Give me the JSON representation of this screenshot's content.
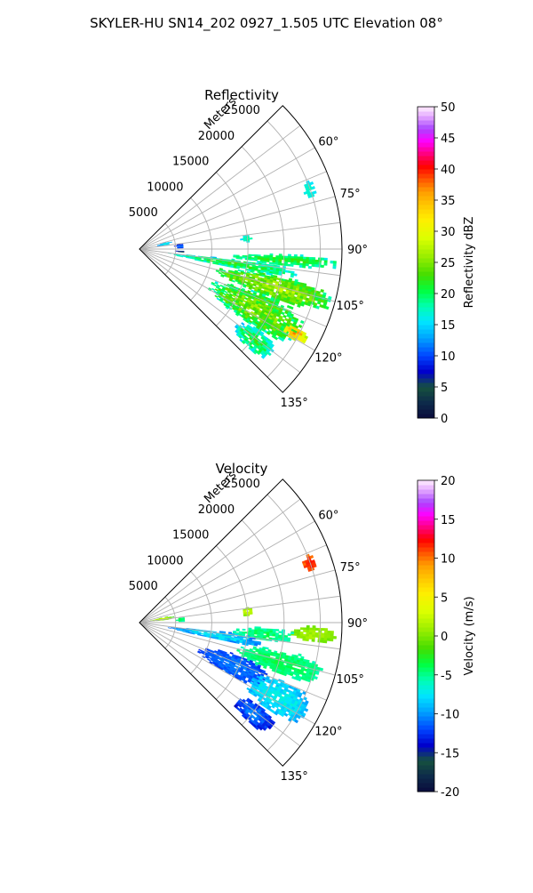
{
  "title": "SKYLER-HU  SN14_202  0927_1.505 UTC Elevation 08°",
  "chart_data": [
    {
      "type": "heatmap",
      "title": "Reflectivity",
      "range_label": "Meters",
      "range_ticks": [
        "5000",
        "10000",
        "15000",
        "20000",
        "25000"
      ],
      "range_max": 28000,
      "azimuth_ticks": [
        "60°",
        "75°",
        "90°",
        "105°",
        "120°",
        "135°"
      ],
      "azimuth_range": [
        45,
        135
      ],
      "colorbar": {
        "label": "Reflectivity dBZ",
        "ticks": [
          "0",
          "5",
          "10",
          "15",
          "20",
          "25",
          "30",
          "35",
          "40",
          "45",
          "50"
        ],
        "range": [
          0,
          50
        ]
      },
      "echoes": [
        {
          "az": [
            92,
            96
          ],
          "r": [
            13000,
            27000
          ],
          "v": [
            16,
            24
          ]
        },
        {
          "az": [
            96,
            101
          ],
          "r": [
            4000,
            22000
          ],
          "v": [
            14,
            24
          ]
        },
        {
          "az": [
            101,
            110
          ],
          "r": [
            11000,
            27000
          ],
          "v": [
            18,
            29
          ]
        },
        {
          "az": [
            110,
            124
          ],
          "r": [
            11000,
            25000
          ],
          "v": [
            16,
            28
          ]
        },
        {
          "az": [
            116,
            120
          ],
          "r": [
            22500,
            26000
          ],
          "v": [
            26,
            38
          ]
        },
        {
          "az": [
            124,
            132
          ],
          "r": [
            17000,
            23000
          ],
          "v": [
            14,
            24
          ]
        },
        {
          "az": [
            68,
            73
          ],
          "r": [
            24000,
            25500
          ],
          "v": [
            15,
            18
          ]
        },
        {
          "az": [
            82,
            86
          ],
          "r": [
            14000,
            15500
          ],
          "v": [
            14,
            20
          ]
        },
        {
          "az": [
            82,
            89
          ],
          "r": [
            4800,
            6000
          ],
          "v": [
            5,
            13
          ]
        },
        {
          "az": [
            76,
            82
          ],
          "r": [
            2500,
            4200
          ],
          "v": [
            12,
            18
          ]
        },
        {
          "az": [
            92,
            94
          ],
          "r": [
            4500,
            6000
          ],
          "v": [
            3,
            8
          ]
        }
      ]
    },
    {
      "type": "heatmap",
      "title": "Velocity",
      "range_label": "Meters",
      "range_ticks": [
        "5000",
        "10000",
        "15000",
        "20000",
        "25000"
      ],
      "range_max": 28000,
      "azimuth_ticks": [
        "60°",
        "75°",
        "90°",
        "105°",
        "120°",
        "135°"
      ],
      "azimuth_range": [
        45,
        135
      ],
      "colorbar": {
        "label": "Velocity (m/s)",
        "ticks": [
          "-20",
          "-15",
          "-10",
          "-5",
          "0",
          "5",
          "10",
          "15",
          "20"
        ],
        "range": [
          -20,
          20
        ]
      },
      "echoes": [
        {
          "az": [
            91,
            96
          ],
          "r": [
            21000,
            27000
          ],
          "v": [
            -1,
            2
          ]
        },
        {
          "az": [
            92,
            98
          ],
          "r": [
            13000,
            21000
          ],
          "v": [
            -7,
            -3
          ]
        },
        {
          "az": [
            96,
            102
          ],
          "r": [
            4000,
            17000
          ],
          "v": [
            -12,
            -6
          ]
        },
        {
          "az": [
            101,
            110
          ],
          "r": [
            14000,
            26000
          ],
          "v": [
            -6,
            -3
          ]
        },
        {
          "az": [
            108,
            120
          ],
          "r": [
            9000,
            19000
          ],
          "v": [
            -13,
            -10
          ]
        },
        {
          "az": [
            112,
            124
          ],
          "r": [
            17000,
            26000
          ],
          "v": [
            -10,
            -6
          ]
        },
        {
          "az": [
            124,
            132
          ],
          "r": [
            17000,
            23000
          ],
          "v": [
            -14,
            -10
          ]
        },
        {
          "az": [
            68,
            73
          ],
          "r": [
            24000,
            25500
          ],
          "v": [
            10,
            13
          ]
        },
        {
          "az": [
            82,
            86
          ],
          "r": [
            14000,
            15500
          ],
          "v": [
            0,
            3
          ]
        },
        {
          "az": [
            82,
            89
          ],
          "r": [
            5000,
            6000
          ],
          "v": [
            -6,
            -3
          ]
        },
        {
          "az": [
            78,
            84
          ],
          "r": [
            1500,
            4500
          ],
          "v": [
            -2,
            4
          ]
        }
      ]
    }
  ]
}
